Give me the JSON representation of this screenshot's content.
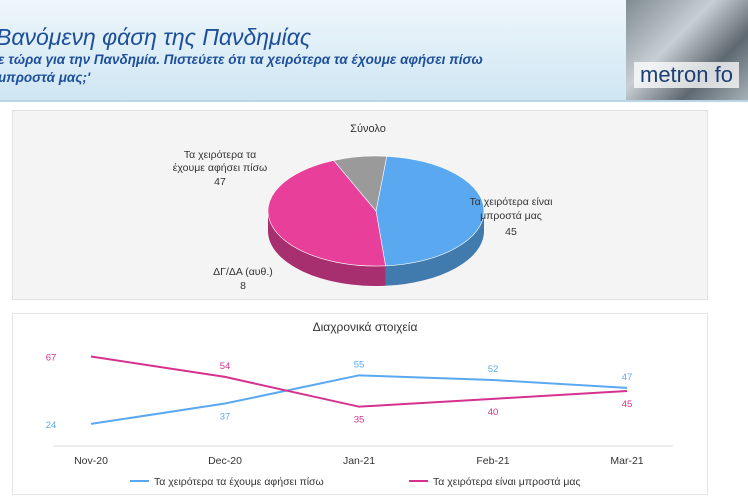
{
  "header": {
    "title": "Βανόμενη φάση της Πανδημίας",
    "subtitle_line1": "ε τώρα για την Πανδημία. Πιστεύετε ότι τα χειρότερα τα έχουμε αφήσει πίσω",
    "subtitle_line2": "μπροστά μας;'",
    "logo_text": "metron fo"
  },
  "chart_data": [
    {
      "type": "pie",
      "title": "Σύνολο",
      "slices": [
        {
          "label_line1": "Τα χειρότερα τα",
          "label_line2": "έχουμε αφήσει πίσω",
          "value": 47,
          "color": "#5aa9f0"
        },
        {
          "label_line1": "Τα χειρότερα είναι",
          "label_line2": "μπροστά μας",
          "value": 45,
          "color": "#e8409a"
        },
        {
          "label_line1": "ΔΓ/ΔΑ (αυθ.)",
          "label_line2": "",
          "value": 8,
          "color": "#9a9a9a"
        }
      ]
    },
    {
      "type": "line",
      "title": "Διαχρονικά στοιχεία",
      "categories": [
        "Nov-20",
        "Dec-20",
        "Jan-21",
        "Feb-21",
        "Mar-21"
      ],
      "series": [
        {
          "name": "Τα χειρότερα τα έχουμε αφήσει πίσω",
          "values": [
            24,
            37,
            55,
            52,
            47
          ],
          "color": "#5aa9f0"
        },
        {
          "name": "Τα χειρότερα είναι μπροστά μας",
          "values": [
            67,
            54,
            35,
            40,
            45
          ],
          "color": "#d6318f"
        }
      ],
      "legend": "bottom"
    }
  ]
}
